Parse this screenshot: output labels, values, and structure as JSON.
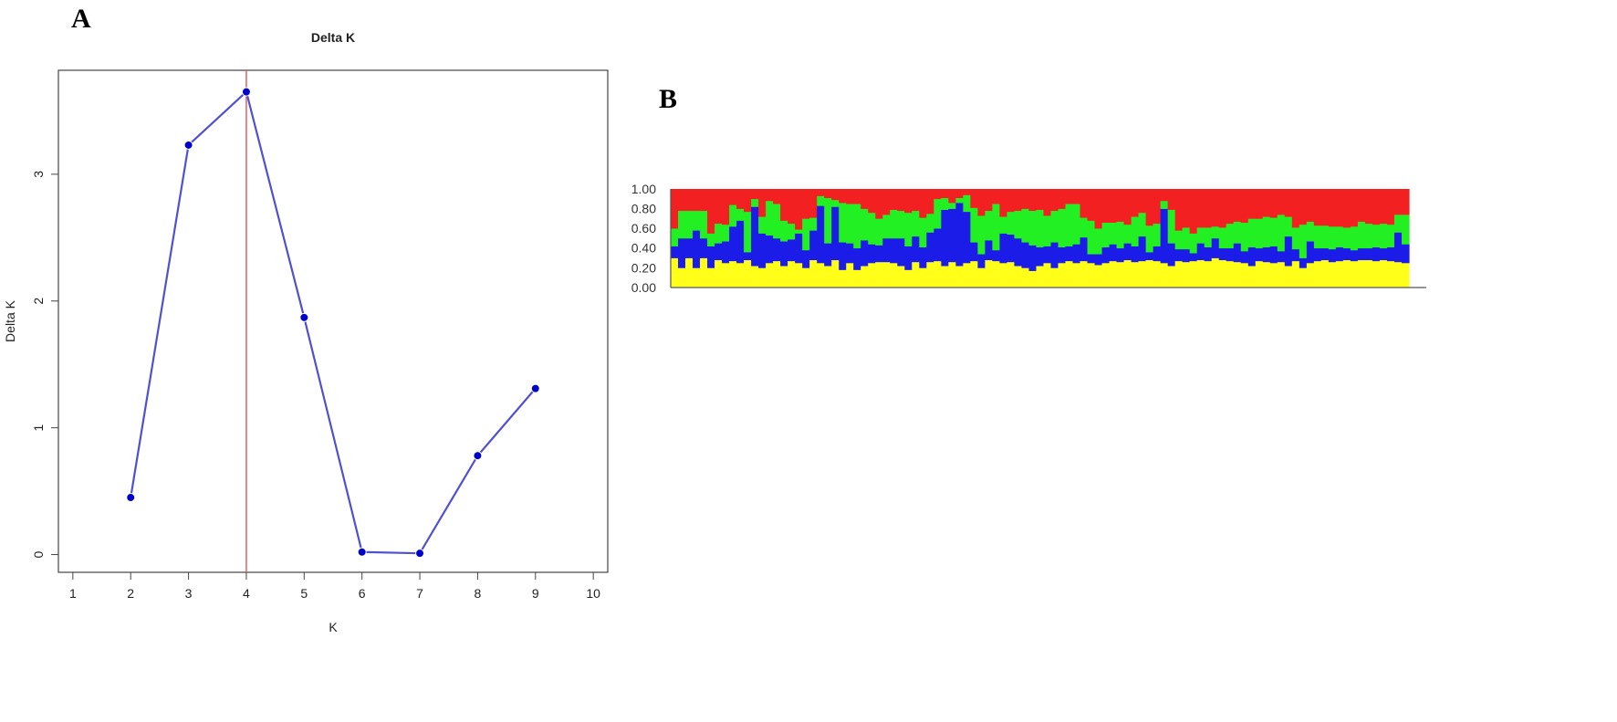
{
  "panels": {
    "a": "A",
    "b": "B"
  },
  "chart_data": [
    {
      "type": "line",
      "title": "Delta K",
      "xlabel": "K",
      "ylabel": "Delta K",
      "xlim": [
        0.75,
        10.25
      ],
      "ylim": [
        -0.14,
        3.82
      ],
      "x_ticks": [
        1,
        2,
        3,
        4,
        5,
        6,
        7,
        8,
        9,
        10
      ],
      "y_ticks": [
        0,
        1,
        2,
        3
      ],
      "grid": false,
      "reference_line": {
        "x": 4,
        "color": "#e06060"
      },
      "series": [
        {
          "color": "#5050d0",
          "marker_color": "#0000cc",
          "x": [
            2,
            3,
            4,
            5,
            6,
            7,
            8,
            9
          ],
          "y": [
            0.45,
            3.23,
            3.65,
            1.87,
            0.02,
            0.01,
            0.78,
            1.31
          ]
        }
      ]
    },
    {
      "type": "bar",
      "stacked": true,
      "ylim": [
        0,
        1
      ],
      "y_ticks": [
        "0.00",
        "0.20",
        "0.40",
        "0.60",
        "0.80",
        "1.00"
      ],
      "grid": false,
      "colors": {
        "yellow": "#ffff1a",
        "blue": "#1c1ce8",
        "green": "#22f022",
        "red": "#f22020"
      },
      "series": [
        {
          "name": "",
          "color": "#ffff1a",
          "values": [
            0.3,
            0.2,
            0.3,
            0.2,
            0.3,
            0.2,
            0.28,
            0.25,
            0.27,
            0.25,
            0.28,
            0.22,
            0.2,
            0.25,
            0.27,
            0.22,
            0.27,
            0.25,
            0.2,
            0.28,
            0.25,
            0.22,
            0.28,
            0.18,
            0.25,
            0.18,
            0.22,
            0.25,
            0.26,
            0.26,
            0.25,
            0.22,
            0.18,
            0.26,
            0.2,
            0.26,
            0.27,
            0.22,
            0.26,
            0.22,
            0.25,
            0.27,
            0.2,
            0.28,
            0.27,
            0.25,
            0.26,
            0.22,
            0.2,
            0.17,
            0.22,
            0.25,
            0.2,
            0.25,
            0.27,
            0.25,
            0.27,
            0.25,
            0.23,
            0.25,
            0.27,
            0.26,
            0.28,
            0.26,
            0.27,
            0.28,
            0.27,
            0.25,
            0.22,
            0.27,
            0.26,
            0.27,
            0.28,
            0.27,
            0.3,
            0.28,
            0.27,
            0.26,
            0.25,
            0.22,
            0.27,
            0.26,
            0.25,
            0.26,
            0.22,
            0.27,
            0.2,
            0.25,
            0.27,
            0.28,
            0.26,
            0.27,
            0.28,
            0.27,
            0.28,
            0.28,
            0.27,
            0.28,
            0.27,
            0.26,
            0.25
          ]
        },
        {
          "name": "",
          "color": "#1c1ce8",
          "values": [
            0.12,
            0.3,
            0.2,
            0.38,
            0.2,
            0.22,
            0.17,
            0.22,
            0.35,
            0.43,
            0.08,
            0.6,
            0.35,
            0.28,
            0.23,
            0.25,
            0.22,
            0.3,
            0.18,
            0.3,
            0.58,
            0.23,
            0.54,
            0.28,
            0.2,
            0.22,
            0.26,
            0.19,
            0.17,
            0.24,
            0.25,
            0.28,
            0.24,
            0.26,
            0.21,
            0.3,
            0.33,
            0.57,
            0.54,
            0.64,
            0.52,
            0.19,
            0.14,
            0.2,
            0.11,
            0.3,
            0.28,
            0.28,
            0.26,
            0.26,
            0.19,
            0.17,
            0.26,
            0.16,
            0.15,
            0.19,
            0.24,
            0.09,
            0.11,
            0.16,
            0.17,
            0.14,
            0.17,
            0.16,
            0.25,
            0.08,
            0.15,
            0.55,
            0.23,
            0.12,
            0.13,
            0.08,
            0.17,
            0.14,
            0.2,
            0.12,
            0.13,
            0.19,
            0.12,
            0.19,
            0.13,
            0.15,
            0.17,
            0.11,
            0.3,
            0.12,
            0.1,
            0.22,
            0.13,
            0.12,
            0.13,
            0.14,
            0.12,
            0.11,
            0.12,
            0.12,
            0.14,
            0.12,
            0.14,
            0.3,
            0.19
          ]
        },
        {
          "name": "",
          "color": "#22f022",
          "values": [
            0.18,
            0.28,
            0.28,
            0.2,
            0.28,
            0.13,
            0.2,
            0.17,
            0.22,
            0.12,
            0.41,
            0.08,
            0.17,
            0.35,
            0.35,
            0.21,
            0.16,
            0.04,
            0.32,
            0.13,
            0.1,
            0.46,
            0.07,
            0.4,
            0.4,
            0.45,
            0.32,
            0.32,
            0.27,
            0.24,
            0.29,
            0.28,
            0.34,
            0.26,
            0.3,
            0.19,
            0.3,
            0.12,
            0.06,
            0.05,
            0.17,
            0.35,
            0.39,
            0.3,
            0.47,
            0.17,
            0.23,
            0.28,
            0.34,
            0.35,
            0.38,
            0.31,
            0.32,
            0.39,
            0.43,
            0.41,
            0.2,
            0.34,
            0.26,
            0.25,
            0.22,
            0.27,
            0.19,
            0.3,
            0.24,
            0.27,
            0.23,
            0.08,
            0.34,
            0.19,
            0.22,
            0.2,
            0.16,
            0.2,
            0.12,
            0.21,
            0.25,
            0.22,
            0.29,
            0.29,
            0.3,
            0.31,
            0.29,
            0.37,
            0.2,
            0.22,
            0.34,
            0.2,
            0.23,
            0.23,
            0.23,
            0.21,
            0.21,
            0.24,
            0.27,
            0.25,
            0.23,
            0.25,
            0.23,
            0.18,
            0.3
          ]
        },
        {
          "name": "",
          "color": "#f22020",
          "values": [
            0.4,
            0.22,
            0.22,
            0.22,
            0.22,
            0.45,
            0.35,
            0.36,
            0.16,
            0.2,
            0.23,
            0.1,
            0.28,
            0.12,
            0.15,
            0.32,
            0.35,
            0.41,
            0.3,
            0.29,
            0.07,
            0.09,
            0.11,
            0.14,
            0.15,
            0.15,
            0.2,
            0.24,
            0.3,
            0.26,
            0.21,
            0.22,
            0.24,
            0.22,
            0.29,
            0.25,
            0.1,
            0.09,
            0.14,
            0.09,
            0.06,
            0.19,
            0.27,
            0.22,
            0.15,
            0.28,
            0.23,
            0.22,
            0.2,
            0.22,
            0.21,
            0.27,
            0.22,
            0.2,
            0.15,
            0.15,
            0.29,
            0.32,
            0.4,
            0.34,
            0.34,
            0.33,
            0.36,
            0.28,
            0.24,
            0.37,
            0.35,
            0.12,
            0.21,
            0.42,
            0.39,
            0.45,
            0.39,
            0.39,
            0.38,
            0.39,
            0.35,
            0.33,
            0.34,
            0.3,
            0.3,
            0.28,
            0.29,
            0.26,
            0.28,
            0.39,
            0.36,
            0.33,
            0.37,
            0.37,
            0.38,
            0.38,
            0.39,
            0.38,
            0.33,
            0.35,
            0.36,
            0.35,
            0.36,
            0.26,
            0.26
          ]
        }
      ]
    }
  ]
}
